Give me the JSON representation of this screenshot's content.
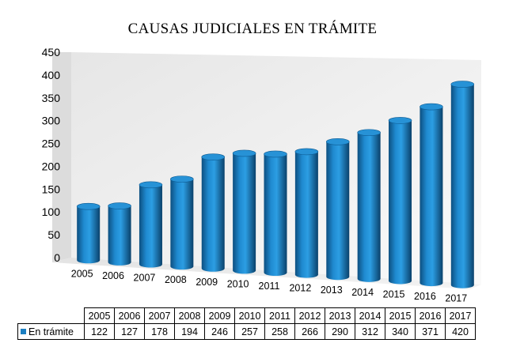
{
  "chart_data": {
    "type": "bar",
    "title": "CAUSAS JUDICIALES EN TRÁMITE",
    "categories": [
      "2005",
      "2006",
      "2007",
      "2008",
      "2009",
      "2010",
      "2011",
      "2012",
      "2013",
      "2014",
      "2015",
      "2016",
      "2017"
    ],
    "series": [
      {
        "name": "En trámite",
        "values": [
          122,
          127,
          178,
          194,
          246,
          257,
          258,
          266,
          290,
          312,
          340,
          371,
          420
        ]
      }
    ],
    "ylim": [
      0,
      450
    ],
    "yticks": [
      "0",
      "50",
      "100",
      "150",
      "200",
      "250",
      "300",
      "350",
      "400",
      "450"
    ],
    "grid": false,
    "legend": "data-table",
    "bar_color": "#1b7fc2",
    "style": "3d-cylinder"
  }
}
